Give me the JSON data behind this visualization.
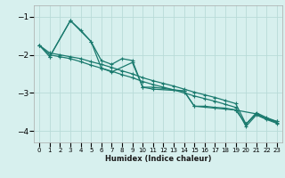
{
  "xlabel": "Humidex (Indice chaleur)",
  "ylabel": "",
  "xlim": [
    -0.5,
    23.5
  ],
  "ylim": [
    -4.3,
    -0.7
  ],
  "background_color": "#d7f0ee",
  "grid_color": "#b8dbd8",
  "line_color": "#1a7a6e",
  "yticks": [
    -4,
    -3,
    -2,
    -1
  ],
  "xticks": [
    0,
    1,
    2,
    3,
    4,
    5,
    6,
    7,
    8,
    9,
    10,
    11,
    12,
    13,
    14,
    15,
    16,
    17,
    18,
    19,
    20,
    21,
    22,
    23
  ],
  "series": [
    {
      "x": [
        0,
        1,
        3,
        4,
        5,
        6,
        7,
        8,
        9,
        10,
        11,
        14,
        15,
        19,
        20,
        21,
        22,
        23
      ],
      "y": [
        -1.75,
        -2.05,
        -1.1,
        -1.35,
        -1.65,
        -2.15,
        -2.25,
        -2.1,
        -2.15,
        -2.85,
        -2.85,
        -2.95,
        -3.35,
        -3.45,
        -3.82,
        -3.55,
        -3.68,
        -3.75
      ]
    },
    {
      "x": [
        0,
        1,
        2,
        3,
        4,
        5,
        6,
        7,
        8,
        9,
        10,
        11,
        12,
        13,
        14,
        15,
        16,
        17,
        18,
        19,
        20,
        21,
        22,
        23
      ],
      "y": [
        -1.75,
        -1.95,
        -2.0,
        -2.05,
        -2.1,
        -2.18,
        -2.25,
        -2.33,
        -2.42,
        -2.5,
        -2.6,
        -2.68,
        -2.75,
        -2.82,
        -2.9,
        -2.98,
        -3.05,
        -3.12,
        -3.2,
        -3.28,
        -3.82,
        -3.52,
        -3.65,
        -3.75
      ]
    },
    {
      "x": [
        0,
        1,
        2,
        3,
        4,
        5,
        6,
        7,
        8,
        9,
        10,
        11,
        12,
        13,
        14,
        15,
        16,
        17,
        18,
        19,
        20,
        21,
        22,
        23
      ],
      "y": [
        -1.75,
        -2.0,
        -2.05,
        -2.1,
        -2.18,
        -2.27,
        -2.35,
        -2.43,
        -2.52,
        -2.6,
        -2.7,
        -2.78,
        -2.85,
        -2.92,
        -3.0,
        -3.08,
        -3.15,
        -3.22,
        -3.3,
        -3.38,
        -3.88,
        -3.58,
        -3.7,
        -3.8
      ]
    },
    {
      "x": [
        1,
        3,
        5,
        6,
        7,
        9,
        10,
        11,
        14,
        15,
        16,
        17,
        18,
        19,
        21,
        22,
        23
      ],
      "y": [
        -2.05,
        -1.1,
        -1.65,
        -2.35,
        -2.45,
        -2.2,
        -2.85,
        -2.9,
        -2.95,
        -3.35,
        -3.35,
        -3.38,
        -3.4,
        -3.45,
        -3.55,
        -3.68,
        -3.78
      ]
    }
  ]
}
